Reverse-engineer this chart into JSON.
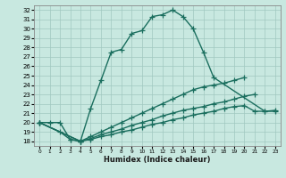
{
  "title": "",
  "xlabel": "Humidex (Indice chaleur)",
  "ylabel": "",
  "xlim": [
    -0.5,
    23.5
  ],
  "ylim": [
    17.5,
    32.5
  ],
  "xticks": [
    0,
    1,
    2,
    3,
    4,
    5,
    6,
    7,
    8,
    9,
    10,
    11,
    12,
    13,
    14,
    15,
    16,
    17,
    18,
    19,
    20,
    21,
    22,
    23
  ],
  "yticks": [
    18,
    19,
    20,
    21,
    22,
    23,
    24,
    25,
    26,
    27,
    28,
    29,
    30,
    31,
    32
  ],
  "bg_color": "#c8e8e0",
  "grid_color": "#a0c8c0",
  "line_color": "#1a6e5e",
  "line_width": 1.0,
  "marker": "+",
  "marker_size": 4,
  "series": [
    {
      "x": [
        0,
        1,
        2,
        3,
        4,
        5,
        6,
        7,
        8,
        9,
        10,
        11,
        12,
        13,
        14,
        15,
        16,
        17,
        22,
        23
      ],
      "y": [
        20.0,
        20.0,
        20.0,
        18.2,
        18.0,
        21.5,
        24.5,
        27.5,
        27.8,
        29.5,
        29.8,
        31.3,
        31.5,
        32.0,
        31.3,
        30.0,
        27.5,
        24.8,
        21.2,
        21.2
      ]
    },
    {
      "x": [
        0,
        4,
        5,
        6,
        7,
        8,
        9,
        10,
        11,
        12,
        13,
        14,
        15,
        16,
        17,
        18,
        19,
        20
      ],
      "y": [
        20.0,
        18.0,
        18.5,
        19.0,
        19.5,
        20.0,
        20.5,
        21.0,
        21.5,
        22.0,
        22.5,
        23.0,
        23.5,
        23.8,
        24.0,
        24.2,
        24.5,
        24.8
      ]
    },
    {
      "x": [
        0,
        2,
        3,
        4,
        5,
        6,
        7,
        8,
        9,
        10,
        11,
        12,
        13,
        14,
        15,
        16,
        17,
        18,
        19,
        20,
        21
      ],
      "y": [
        20.0,
        19.0,
        18.2,
        18.0,
        18.3,
        18.7,
        19.0,
        19.3,
        19.7,
        20.0,
        20.3,
        20.7,
        21.0,
        21.3,
        21.5,
        21.7,
        22.0,
        22.2,
        22.5,
        22.8,
        23.0
      ]
    },
    {
      "x": [
        0,
        4,
        5,
        6,
        7,
        8,
        9,
        10,
        11,
        12,
        13,
        14,
        15,
        16,
        17,
        18,
        19,
        20,
        21,
        22,
        23
      ],
      "y": [
        20.0,
        18.0,
        18.2,
        18.5,
        18.7,
        19.0,
        19.2,
        19.5,
        19.8,
        20.0,
        20.3,
        20.5,
        20.8,
        21.0,
        21.2,
        21.5,
        21.7,
        21.8,
        21.2,
        21.2,
        21.3
      ]
    }
  ]
}
